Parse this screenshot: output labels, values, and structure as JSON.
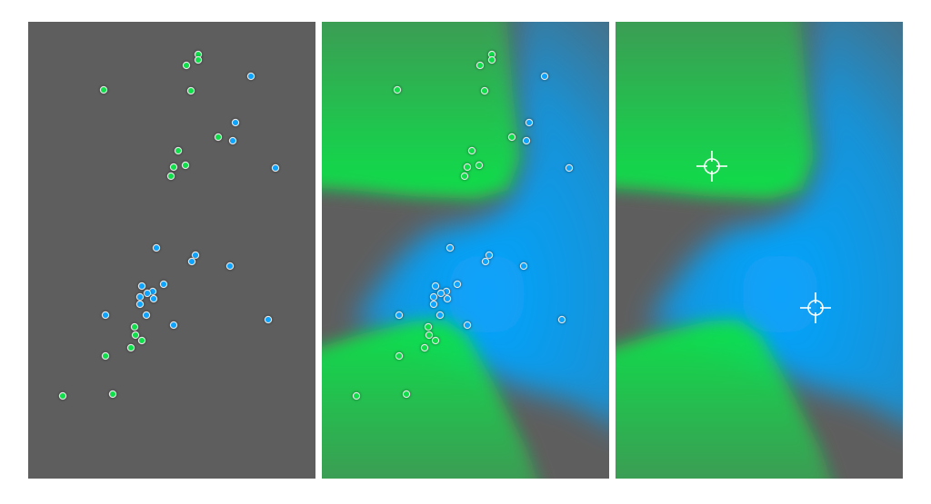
{
  "colors": {
    "background": "#5e5e5e",
    "class_green": "#11e04a",
    "class_blue": "#07a4ff",
    "point_edge": "#e6e6e6",
    "marker": "#ffffff"
  },
  "panels": [
    {
      "id": "scatter",
      "shows": [
        "points"
      ]
    },
    {
      "id": "overlay",
      "shows": [
        "regions",
        "points"
      ]
    },
    {
      "id": "regions",
      "shows": [
        "regions",
        "centroids"
      ]
    }
  ],
  "chart_data": {
    "type": "scatter",
    "xlim": [
      0,
      316
    ],
    "ylim": [
      0,
      503
    ],
    "y_inverted": true,
    "grid": false,
    "series": [
      {
        "class": "green",
        "color": "#11e04a",
        "points": [
          [
            187,
            36
          ],
          [
            187,
            42
          ],
          [
            174,
            48
          ],
          [
            83,
            75
          ],
          [
            179,
            76
          ],
          [
            209,
            127
          ],
          [
            165,
            142
          ],
          [
            160,
            160
          ],
          [
            173,
            158
          ],
          [
            157,
            170
          ],
          [
            117,
            336
          ],
          [
            118,
            345
          ],
          [
            125,
            351
          ],
          [
            113,
            359
          ],
          [
            85,
            368
          ],
          [
            38,
            412
          ],
          [
            93,
            410
          ]
        ]
      },
      {
        "class": "blue",
        "color": "#07a4ff",
        "points": [
          [
            245,
            60
          ],
          [
            228,
            111
          ],
          [
            225,
            131
          ],
          [
            272,
            161
          ],
          [
            141,
            249
          ],
          [
            184,
            257
          ],
          [
            180,
            264
          ],
          [
            222,
            269
          ],
          [
            125,
            291
          ],
          [
            149,
            289
          ],
          [
            137,
            297
          ],
          [
            131,
            299
          ],
          [
            138,
            305
          ],
          [
            123,
            303
          ],
          [
            123,
            311
          ],
          [
            85,
            323
          ],
          [
            130,
            323
          ],
          [
            160,
            334
          ],
          [
            264,
            328
          ]
        ]
      }
    ],
    "centroids": [
      {
        "class": "green",
        "position": [
          106,
          159
        ]
      },
      {
        "class": "blue",
        "position": [
          220,
          315
        ]
      }
    ]
  }
}
